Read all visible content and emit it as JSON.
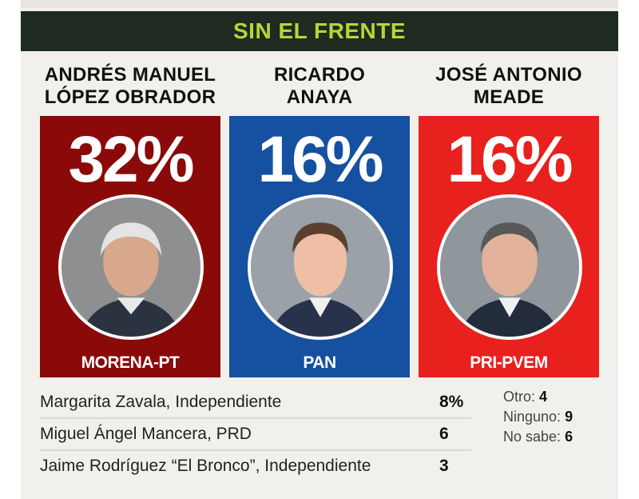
{
  "title": "SIN EL FRENTE",
  "colors": {
    "header_bg": "#1f2a20",
    "header_text": "#b9d43a",
    "morena": "#8a0a0a",
    "pan": "#1650a0",
    "pri": "#e8201e"
  },
  "candidates": [
    {
      "name_line1": "ANDRÉS MANUEL",
      "name_line2": "LÓPEZ OBRADOR",
      "pct": "32%",
      "party": "MORENA-PT",
      "color": "#8a0a0a",
      "photo_icon": "candidate-portrait-icon"
    },
    {
      "name_line1": "RICARDO",
      "name_line2": "ANAYA",
      "pct": "16%",
      "party": "PAN",
      "color": "#1650a0",
      "photo_icon": "candidate-portrait-icon"
    },
    {
      "name_line1": "JOSÉ ANTONIO",
      "name_line2": "MEADE",
      "pct": "16%",
      "party": "PRI-PVEM",
      "color": "#e8201e",
      "photo_icon": "candidate-portrait-icon"
    }
  ],
  "others": [
    {
      "name": "Margarita Zavala, Independiente",
      "value": "8%"
    },
    {
      "name": "Miguel Ángel Mancera, PRD",
      "value": "6"
    },
    {
      "name": "Jaime Rodríguez “El Bronco”, Independiente",
      "value": "3"
    }
  ],
  "side": [
    {
      "label": "Otro:",
      "value": "4"
    },
    {
      "label": "Ninguno:",
      "value": "9"
    },
    {
      "label": "No sabe:",
      "value": "6"
    }
  ],
  "chart_data": {
    "type": "table",
    "title": "SIN EL FRENTE",
    "categories": [
      "ANDRÉS MANUEL LÓPEZ OBRADOR",
      "RICARDO ANAYA",
      "JOSÉ ANTONIO MEADE",
      "Margarita Zavala",
      "Miguel Ángel Mancera",
      "Jaime Rodríguez “El Bronco”",
      "Otro",
      "Ninguno",
      "No sabe"
    ],
    "values": [
      32,
      16,
      16,
      8,
      6,
      3,
      4,
      9,
      6
    ],
    "unit": "%"
  }
}
